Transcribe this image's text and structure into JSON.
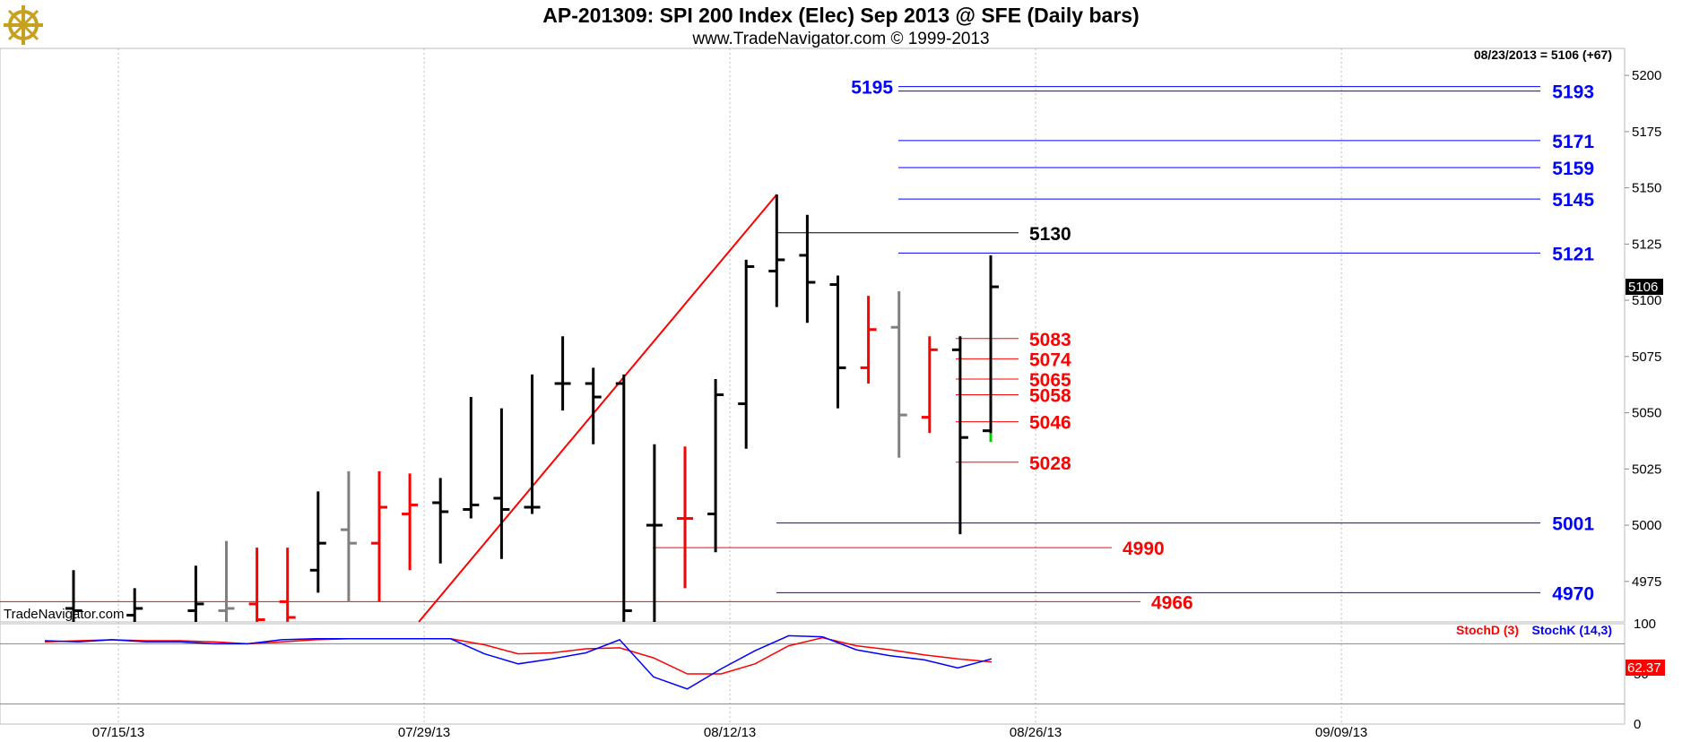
{
  "header": {
    "title": "AP-201309:  SPI 200 Index (Elec) Sep 2013 @ SFE  (Daily bars)",
    "subtitle": "www.TradeNavigator.com © 1999-2013",
    "last_info": "08/23/2013 = 5106 (+67)",
    "watermark": "TradeNavigator.com",
    "logo_icon": "ship-helm-logo-icon"
  },
  "colors": {
    "up": "#000000",
    "down": "#ff0000",
    "neutral": "#808080",
    "blue_level": "#0000ff",
    "red_level": "#ff0000",
    "stoch_d": "#ff0000",
    "stoch_k": "#0000ff"
  },
  "chart_data": [
    {
      "type": "ohlc",
      "title": "AP-201309:  SPI 200 Index (Elec) Sep 2013 @ SFE  (Daily bars)",
      "ylim": [
        4957,
        5212
      ],
      "y_ticks": [
        5200,
        5175,
        5150,
        5125,
        5100,
        5075,
        5050,
        5025,
        5000,
        4975
      ],
      "x_ticks": [
        "07/15/13",
        "07/29/13",
        "08/12/13",
        "08/26/13",
        "09/09/13"
      ],
      "last_price_tag": "5106",
      "bars": [
        {
          "date": "07/12/13",
          "o": 4963,
          "h": 4980,
          "l": 4957,
          "c": 4962,
          "color": "up"
        },
        {
          "date": "07/16/13",
          "o": 4960,
          "h": 4972,
          "l": 4957,
          "c": 4963,
          "color": "up"
        },
        {
          "date": "07/18/13",
          "o": 4962,
          "h": 4982,
          "l": 4957,
          "c": 4965,
          "color": "up"
        },
        {
          "date": "07/19/13",
          "o": 4962,
          "h": 4993,
          "l": 4957,
          "c": 4963,
          "color": "neutral"
        },
        {
          "date": "07/22/13",
          "o": 4965,
          "h": 4990,
          "l": 4957,
          "c": 4958,
          "color": "down"
        },
        {
          "date": "07/23/13",
          "o": 4966,
          "h": 4990,
          "l": 4957,
          "c": 4959,
          "color": "down"
        },
        {
          "date": "07/24/13",
          "o": 4980,
          "h": 5015,
          "l": 4970,
          "c": 4992,
          "color": "up"
        },
        {
          "date": "07/25/13",
          "o": 4998,
          "h": 5024,
          "l": 4966,
          "c": 4992,
          "color": "neutral"
        },
        {
          "date": "07/26/13",
          "o": 4992,
          "h": 5024,
          "l": 4966,
          "c": 5008,
          "color": "down"
        },
        {
          "date": "07/29/13",
          "o": 5005,
          "h": 5023,
          "l": 4980,
          "c": 5009,
          "color": "down"
        },
        {
          "date": "07/30/13",
          "o": 5010,
          "h": 5021,
          "l": 4983,
          "c": 5006,
          "color": "up"
        },
        {
          "date": "07/31/13",
          "o": 5007,
          "h": 5057,
          "l": 5003,
          "c": 5009,
          "color": "up"
        },
        {
          "date": "08/01/13",
          "o": 5012,
          "h": 5052,
          "l": 4985,
          "c": 5007,
          "color": "up"
        },
        {
          "date": "08/02/13",
          "o": 5008,
          "h": 5067,
          "l": 5005,
          "c": 5008,
          "color": "up"
        },
        {
          "date": "08/05/13",
          "o": 5063,
          "h": 5084,
          "l": 5051,
          "c": 5063,
          "color": "up"
        },
        {
          "date": "08/06/13",
          "o": 5063,
          "h": 5070,
          "l": 5036,
          "c": 5057,
          "color": "up"
        },
        {
          "date": "08/07/13",
          "o": 5063,
          "h": 5067,
          "l": 4957,
          "c": 4962,
          "color": "up"
        },
        {
          "date": "08/08/13",
          "o": 5000,
          "h": 5036,
          "l": 4957,
          "c": 5000,
          "color": "up"
        },
        {
          "date": "08/09/13",
          "o": 5003,
          "h": 5035,
          "l": 4972,
          "c": 5003,
          "color": "down"
        },
        {
          "date": "08/12/13",
          "o": 5005,
          "h": 5065,
          "l": 4988,
          "c": 5058,
          "color": "up"
        },
        {
          "date": "08/13/13",
          "o": 5054,
          "h": 5118,
          "l": 5034,
          "c": 5115,
          "color": "up"
        },
        {
          "date": "08/14/13",
          "o": 5113,
          "h": 5147,
          "l": 5097,
          "c": 5118,
          "color": "up"
        },
        {
          "date": "08/15/13",
          "o": 5120,
          "h": 5138,
          "l": 5090,
          "c": 5108,
          "color": "up"
        },
        {
          "date": "08/16/13",
          "o": 5107,
          "h": 5111,
          "l": 5052,
          "c": 5070,
          "color": "up"
        },
        {
          "date": "08/19/13",
          "o": 5070,
          "h": 5102,
          "l": 5063,
          "c": 5087,
          "color": "down"
        },
        {
          "date": "08/20/13",
          "o": 5088,
          "h": 5104,
          "l": 5030,
          "c": 5049,
          "color": "neutral"
        },
        {
          "date": "08/21/13",
          "o": 5048,
          "h": 5084,
          "l": 5041,
          "c": 5078,
          "color": "down"
        },
        {
          "date": "08/22/13",
          "o": 5078,
          "h": 5084,
          "l": 4996,
          "c": 5039,
          "color": "up"
        },
        {
          "date": "08/23/13",
          "o": 5042,
          "h": 5120,
          "l": 5040,
          "c": 5106,
          "color": "up"
        }
      ],
      "trendline": {
        "from": {
          "date": "07/29/13",
          "value": 4957
        },
        "to": {
          "date": "08/14/13",
          "value": 5147
        }
      },
      "levels": [
        {
          "value": 5195,
          "label": "5195",
          "color": "blue"
        },
        {
          "value": 5193,
          "label": "5193",
          "color": "blue"
        },
        {
          "value": 5171,
          "label": "5171",
          "color": "blue"
        },
        {
          "value": 5159,
          "label": "5159",
          "color": "blue"
        },
        {
          "value": 5145,
          "label": "5145",
          "color": "blue"
        },
        {
          "value": 5130,
          "label": "5130",
          "color": "black"
        },
        {
          "value": 5121,
          "label": "5121",
          "color": "blue"
        },
        {
          "value": 5083,
          "label": "5083",
          "color": "red"
        },
        {
          "value": 5074,
          "label": "5074",
          "color": "red"
        },
        {
          "value": 5065,
          "label": "5065",
          "color": "red"
        },
        {
          "value": 5058,
          "label": "5058",
          "color": "red"
        },
        {
          "value": 5046,
          "label": "5046",
          "color": "red"
        },
        {
          "value": 5028,
          "label": "5028",
          "color": "red"
        },
        {
          "value": 5001,
          "label": "5001",
          "color": "blue"
        },
        {
          "value": 4990,
          "label": "4990",
          "color": "red"
        },
        {
          "value": 4970,
          "label": "4970",
          "color": "blue"
        },
        {
          "value": 4966,
          "label": "4966",
          "color": "red"
        }
      ]
    },
    {
      "type": "line",
      "ylim": [
        0,
        100
      ],
      "y_ticks": [
        100,
        50,
        0
      ],
      "reference_lines": [
        80,
        20
      ],
      "last_value_tag": "62.37",
      "series": [
        {
          "name": "StochD (3)",
          "color": "stoch_d",
          "values": [
            82,
            83,
            84,
            83,
            83,
            82,
            80,
            82,
            84,
            85,
            85,
            85,
            85,
            79,
            70,
            71,
            75,
            76,
            66,
            50,
            50,
            60,
            78,
            86,
            78,
            74,
            69,
            65,
            62
          ]
        },
        {
          "name": "StochK (14,3)",
          "color": "stoch_k",
          "values": [
            83,
            82,
            84,
            82,
            82,
            80,
            80,
            84,
            85,
            85,
            85,
            85,
            85,
            70,
            60,
            65,
            71,
            84,
            47,
            35,
            55,
            73,
            88,
            87,
            74,
            68,
            64,
            56,
            65
          ]
        }
      ]
    }
  ]
}
